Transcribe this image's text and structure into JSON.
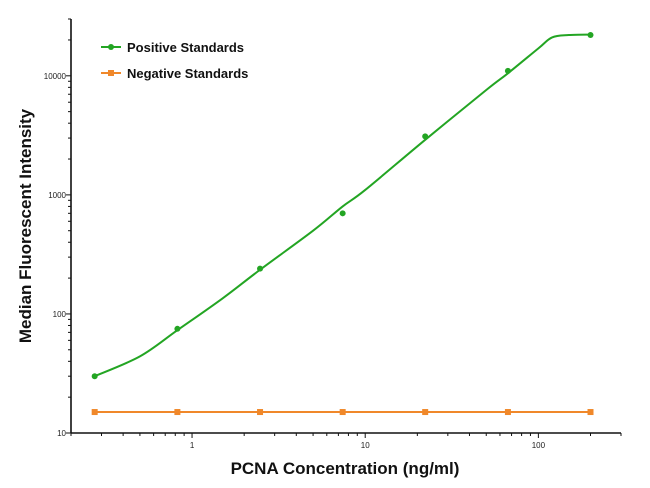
{
  "chart_data": {
    "type": "line",
    "title": "",
    "xlabel": "PCNA Concentration (ng/ml)",
    "ylabel": "Median Fluorescent Intensity",
    "xscale": "log",
    "yscale": "log",
    "xlim": [
      0.2,
      300
    ],
    "ylim": [
      10,
      30000
    ],
    "x_ticks": [
      1,
      10,
      100
    ],
    "x_tick_labels": [
      "1",
      "10",
      "100"
    ],
    "y_ticks": [
      10,
      100,
      1000,
      10000
    ],
    "y_tick_labels": [
      "10",
      "100",
      "1000",
      "10000"
    ],
    "grid": false,
    "legend_position": "top-left",
    "series": [
      {
        "name": "Positive Standards",
        "color": "#23a523",
        "marker": "circle",
        "x": [
          0.274,
          0.823,
          2.47,
          7.41,
          22.2,
          66.7,
          200
        ],
        "y": [
          30,
          75,
          240,
          700,
          3100,
          11000,
          22000
        ],
        "fit_curve": {
          "x": [
            0.274,
            0.5,
            0.823,
            1.5,
            2.47,
            5,
            7.41,
            10,
            22.2,
            50,
            66.7,
            100,
            120,
            150,
            200
          ],
          "y": [
            30,
            44,
            73,
            135,
            235,
            500,
            800,
            1100,
            2900,
            7600,
            10500,
            17000,
            21000,
            22000,
            22200
          ]
        }
      },
      {
        "name": "Negative Standards",
        "color": "#f0882a",
        "marker": "square",
        "x": [
          0.274,
          0.823,
          2.47,
          7.41,
          22.2,
          66.7,
          200
        ],
        "y": [
          15,
          15,
          15,
          15,
          15,
          15,
          15
        ]
      }
    ]
  }
}
